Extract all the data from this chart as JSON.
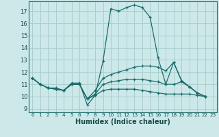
{
  "title": "",
  "xlabel": "Humidex (Indice chaleur)",
  "ylabel": "",
  "bg_color": "#cce8e8",
  "line_color": "#1a6b6b",
  "grid_color": "#aacece",
  "xlim": [
    -0.5,
    23.5
  ],
  "ylim": [
    8.7,
    17.8
  ],
  "yticks": [
    9,
    10,
    11,
    12,
    13,
    14,
    15,
    16,
    17
  ],
  "xticks": [
    0,
    1,
    2,
    3,
    4,
    5,
    6,
    7,
    8,
    9,
    10,
    11,
    12,
    13,
    14,
    15,
    16,
    17,
    18,
    19,
    20,
    21,
    22,
    23
  ],
  "series": [
    {
      "x": [
        0,
        1,
        2,
        3,
        4,
        5,
        6,
        7,
        8,
        9,
        10,
        11,
        12,
        13,
        14,
        15,
        16,
        17,
        18,
        19,
        20,
        21,
        22
      ],
      "y": [
        11.5,
        11.0,
        10.7,
        10.7,
        10.5,
        11.1,
        11.1,
        9.3,
        10.1,
        12.9,
        17.2,
        17.0,
        17.3,
        17.5,
        17.3,
        16.5,
        13.2,
        11.0,
        12.8,
        11.3,
        10.8,
        10.3,
        10.0
      ]
    },
    {
      "x": [
        0,
        1,
        2,
        3,
        4,
        5,
        6,
        7,
        8,
        9,
        10,
        11,
        12,
        13,
        14,
        15,
        16,
        17,
        18,
        19,
        20,
        21,
        22
      ],
      "y": [
        11.5,
        11.0,
        10.7,
        10.6,
        10.5,
        11.0,
        11.0,
        9.8,
        10.5,
        11.5,
        11.8,
        12.0,
        12.2,
        12.4,
        12.5,
        12.5,
        12.4,
        12.1,
        12.8,
        11.3,
        10.8,
        10.3,
        10.0
      ]
    },
    {
      "x": [
        0,
        1,
        2,
        3,
        4,
        5,
        6,
        7,
        8,
        9,
        10,
        11,
        12,
        13,
        14,
        15,
        16,
        17,
        18,
        19,
        20,
        21,
        22
      ],
      "y": [
        11.5,
        11.0,
        10.7,
        10.6,
        10.5,
        11.0,
        11.0,
        9.8,
        10.2,
        11.0,
        11.2,
        11.3,
        11.4,
        11.4,
        11.4,
        11.3,
        11.2,
        11.0,
        11.0,
        11.2,
        10.8,
        10.3,
        10.0
      ]
    },
    {
      "x": [
        0,
        1,
        2,
        3,
        4,
        5,
        6,
        7,
        8,
        9,
        10,
        11,
        12,
        13,
        14,
        15,
        16,
        17,
        18,
        19,
        20,
        21,
        22
      ],
      "y": [
        11.5,
        11.0,
        10.7,
        10.6,
        10.5,
        11.0,
        11.0,
        9.8,
        10.1,
        10.5,
        10.6,
        10.6,
        10.6,
        10.6,
        10.5,
        10.4,
        10.3,
        10.2,
        10.2,
        10.2,
        10.2,
        10.1,
        10.0
      ]
    }
  ]
}
